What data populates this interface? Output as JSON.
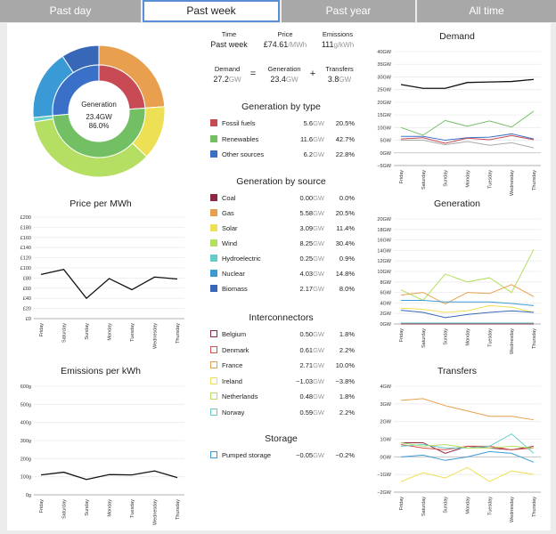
{
  "tabs": [
    {
      "label": "Past day",
      "active": false
    },
    {
      "label": "Past week",
      "active": true
    },
    {
      "label": "Past year",
      "active": false
    },
    {
      "label": "All time",
      "active": false
    }
  ],
  "donut": {
    "center_title": "Generation",
    "center_value": "23.4GW",
    "center_pct": "86.0%",
    "outer": [
      {
        "name": "Gas",
        "value": 5.58,
        "color": "#e8a04e"
      },
      {
        "name": "Solar",
        "value": 3.09,
        "color": "#ede055"
      },
      {
        "name": "Wind",
        "value": 8.25,
        "color": "#b4df62"
      },
      {
        "name": "Hydroelectric",
        "value": 0.25,
        "color": "#65ccc8"
      },
      {
        "name": "Nuclear",
        "value": 4.03,
        "color": "#3a9ad6"
      },
      {
        "name": "Biomass",
        "value": 2.17,
        "color": "#3867b8"
      }
    ],
    "inner": [
      {
        "name": "Fossil fuels",
        "value": 5.6,
        "color": "#c84a55"
      },
      {
        "name": "Renewables",
        "value": 11.6,
        "color": "#73c064"
      },
      {
        "name": "Other sources",
        "value": 6.2,
        "color": "#3a70c8"
      }
    ]
  },
  "summary": {
    "time_label": "Time",
    "time_value": "Past week",
    "price_label": "Price",
    "price_value": "£74.61",
    "price_unit": "/MWh",
    "emis_label": "Emissions",
    "emis_value": "111",
    "emis_unit": "g/kWh",
    "demand_label": "Demand",
    "demand_value": "27.2",
    "demand_unit": "GW",
    "eq": "=",
    "gen_label": "Generation",
    "gen_value": "23.4",
    "gen_unit": "GW",
    "plus": "+",
    "tr_label": "Transfers",
    "tr_value": "3.8",
    "tr_unit": "GW"
  },
  "gen_by_type": {
    "title": "Generation by type",
    "rows": [
      {
        "name": "Fossil fuels",
        "num": "5.6",
        "unit": "GW",
        "pct": "20.5%",
        "color": "#c84a55",
        "outline": false
      },
      {
        "name": "Renewables",
        "num": "11.6",
        "unit": "GW",
        "pct": "42.7%",
        "color": "#73c064",
        "outline": false
      },
      {
        "name": "Other sources",
        "num": "6.2",
        "unit": "GW",
        "pct": "22.8%",
        "color": "#3a70c8",
        "outline": false
      }
    ]
  },
  "gen_by_source": {
    "title": "Generation by source",
    "rows": [
      {
        "name": "Coal",
        "num": "0.00",
        "unit": "GW",
        "pct": "0.0%",
        "color": "#8a2942",
        "outline": false
      },
      {
        "name": "Gas",
        "num": "5.58",
        "unit": "GW",
        "pct": "20.5%",
        "color": "#e8a04e",
        "outline": false
      },
      {
        "name": "Solar",
        "num": "3.09",
        "unit": "GW",
        "pct": "11.4%",
        "color": "#ede055",
        "outline": false
      },
      {
        "name": "Wind",
        "num": "8.25",
        "unit": "GW",
        "pct": "30.4%",
        "color": "#b4df62",
        "outline": false
      },
      {
        "name": "Hydroelectric",
        "num": "0.25",
        "unit": "GW",
        "pct": "0.9%",
        "color": "#65ccc8",
        "outline": false
      },
      {
        "name": "Nuclear",
        "num": "4.03",
        "unit": "GW",
        "pct": "14.8%",
        "color": "#3a9ad6",
        "outline": false
      },
      {
        "name": "Biomass",
        "num": "2.17",
        "unit": "GW",
        "pct": "8.0%",
        "color": "#3867b8",
        "outline": false
      }
    ]
  },
  "interconnectors": {
    "title": "Interconnectors",
    "rows": [
      {
        "name": "Belgium",
        "num": "0.50",
        "unit": "GW",
        "pct": "1.8%",
        "color": "#8a2942",
        "outline": true
      },
      {
        "name": "Denmark",
        "num": "0.61",
        "unit": "GW",
        "pct": "2.2%",
        "color": "#d9534f",
        "outline": true
      },
      {
        "name": "France",
        "num": "2.71",
        "unit": "GW",
        "pct": "10.0%",
        "color": "#e8a04e",
        "outline": true
      },
      {
        "name": "Ireland",
        "num": "−1.03",
        "unit": "GW",
        "pct": "−3.8%",
        "color": "#ede055",
        "outline": true
      },
      {
        "name": "Netherlands",
        "num": "0.48",
        "unit": "GW",
        "pct": "1.8%",
        "color": "#b4df62",
        "outline": true
      },
      {
        "name": "Norway",
        "num": "0.59",
        "unit": "GW",
        "pct": "2.2%",
        "color": "#65ccc8",
        "outline": true
      }
    ]
  },
  "storage": {
    "title": "Storage",
    "rows": [
      {
        "name": "Pumped storage",
        "num": "−0.05",
        "unit": "GW",
        "pct": "−0.2%",
        "color": "#3a9ad6",
        "outline": true
      }
    ]
  },
  "chart_data": [
    {
      "id": "price",
      "type": "line",
      "title": "Price per MWh",
      "categories": [
        "Friday",
        "Saturday",
        "Sunday",
        "Monday",
        "Tuesday",
        "Wednesday",
        "Thursday"
      ],
      "ylim": [
        0,
        200
      ],
      "yticks": [
        "£0",
        "£20",
        "£40",
        "£60",
        "£80",
        "£100",
        "£120",
        "£140",
        "£160",
        "£180",
        "£200"
      ],
      "series": [
        {
          "values": [
            87,
            97,
            40,
            79,
            57,
            82,
            78
          ],
          "color": "#111"
        }
      ]
    },
    {
      "id": "emissions",
      "type": "line",
      "title": "Emissions per kWh",
      "categories": [
        "Friday",
        "Saturday",
        "Sunday",
        "Monday",
        "Tuesday",
        "Wednesday",
        "Thursday"
      ],
      "ylim": [
        0,
        600
      ],
      "yticks": [
        "0g",
        "100g",
        "200g",
        "300g",
        "400g",
        "500g",
        "600g"
      ],
      "series": [
        {
          "values": [
            110,
            125,
            85,
            112,
            110,
            132,
            95
          ],
          "color": "#111"
        }
      ]
    },
    {
      "id": "demand",
      "type": "line",
      "title": "Demand",
      "categories": [
        "Friday",
        "Saturday",
        "Sunday",
        "Monday",
        "Tuesday",
        "Wednesday",
        "Thursday"
      ],
      "ylim": [
        -5,
        40
      ],
      "yticks": [
        "−5GW",
        "0GW",
        "5GW",
        "10GW",
        "15GW",
        "20GW",
        "25GW",
        "30GW",
        "35GW",
        "40GW"
      ],
      "series": [
        {
          "values": [
            27,
            25.5,
            25.5,
            27.8,
            28,
            28.2,
            29
          ],
          "color": "#111"
        },
        {
          "values": [
            10,
            7,
            12.8,
            10.5,
            12.6,
            10.2,
            16.5
          ],
          "color": "#73c064"
        },
        {
          "values": [
            6.5,
            6.5,
            5,
            6,
            6.2,
            7.5,
            5.5
          ],
          "color": "#3a70c8"
        },
        {
          "values": [
            5.5,
            6,
            3.8,
            5.8,
            5.2,
            6.8,
            5.2
          ],
          "color": "#c84a55"
        },
        {
          "values": [
            5,
            5,
            3.2,
            4.5,
            3,
            4,
            2
          ],
          " color": "#aaa",
          "color": "#aaa"
        }
      ]
    },
    {
      "id": "generation",
      "type": "line",
      "title": "Generation",
      "categories": [
        "Friday",
        "Saturday",
        "Sunday",
        "Monday",
        "Tuesday",
        "Wednesday",
        "Thursday"
      ],
      "ylim": [
        0,
        20
      ],
      "yticks": [
        "0GW",
        "2GW",
        "4GW",
        "6GW",
        "8GW",
        "10GW",
        "12GW",
        "14GW",
        "16GW",
        "18GW",
        "20GW"
      ],
      "series": [
        {
          "values": [
            6.5,
            4.5,
            9.5,
            8,
            8.8,
            6,
            14.2
          ],
          "color": "#b4df62"
        },
        {
          "values": [
            5.5,
            6,
            3.8,
            6,
            5.8,
            7.5,
            5.2
          ],
          "color": "#e8a04e"
        },
        {
          "values": [
            4.5,
            4.5,
            4.2,
            4.2,
            4.2,
            3.9,
            3.5
          ],
          "color": "#3a9ad6"
        },
        {
          "values": [
            3,
            2.8,
            2.2,
            2.5,
            3.5,
            3.2,
            2.2
          ],
          "color": "#ede055"
        },
        {
          "values": [
            2.6,
            2.2,
            1.2,
            1.8,
            2.2,
            2.5,
            2.2
          ],
          "color": "#3867b8"
        },
        {
          "values": [
            0.2,
            0.2,
            0.2,
            0.2,
            0.2,
            0.2,
            0.2
          ],
          "color": "#65ccc8"
        },
        {
          "values": [
            0,
            0,
            0,
            0,
            0,
            0,
            0
          ],
          "color": "#8a2942"
        }
      ]
    },
    {
      "id": "transfers",
      "type": "line",
      "title": "Transfers",
      "categories": [
        "Friday",
        "Saturday",
        "Sunday",
        "Monday",
        "Tuesday",
        "Wednesday",
        "Thursday"
      ],
      "ylim": [
        -2,
        4
      ],
      "yticks": [
        "−2GW",
        "−1GW",
        "0GW",
        "1GW",
        "2GW",
        "3GW",
        "4GW"
      ],
      "series": [
        {
          "values": [
            3.2,
            3.3,
            2.9,
            2.6,
            2.3,
            2.3,
            2.1
          ],
          "color": "#e8a04e"
        },
        {
          "values": [
            0.8,
            0.8,
            0.2,
            0.6,
            0.5,
            0.4,
            0.6
          ],
          "color": "#8a2942"
        },
        {
          "values": [
            0.7,
            0.5,
            0.4,
            0.6,
            0.6,
            0.4,
            0.5
          ],
          "color": "#d9534f"
        },
        {
          "values": [
            0.6,
            0.7,
            0.5,
            0.5,
            0.6,
            1.3,
            0.2
          ],
          "color": "#65ccc8"
        },
        {
          "values": [
            0.8,
            0.6,
            0.7,
            0.5,
            0.5,
            0.6,
            0.5
          ],
          "color": "#b4df62"
        },
        {
          "values": [
            0,
            0.1,
            -0.2,
            0,
            0.3,
            0.2,
            -0.3
          ],
          "color": "#3a9ad6"
        },
        {
          "values": [
            -1.4,
            -0.9,
            -1.2,
            -0.6,
            -1.4,
            -0.8,
            -1
          ],
          " color": "#ede055",
          "color": "#ede055"
        }
      ]
    }
  ]
}
